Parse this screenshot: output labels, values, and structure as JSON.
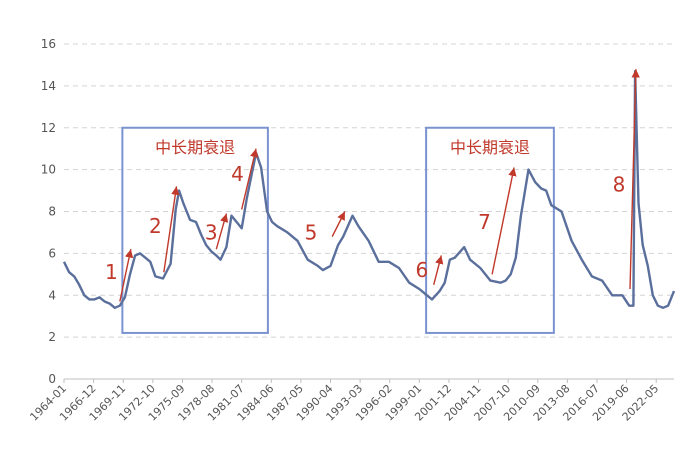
{
  "chart_data": {
    "type": "line",
    "title": "",
    "xlabel": "",
    "ylabel": "",
    "ylim": [
      0,
      16
    ],
    "yticks": [
      0,
      2,
      4,
      6,
      8,
      10,
      12,
      14,
      16
    ],
    "grid": "horizontal dashed",
    "line_color": "#5a6f9c",
    "accent_color": "#c0392b",
    "box_color": "#7a93d0",
    "x_tick_labels": [
      "1964-01",
      "1966-12",
      "1969-11",
      "1972-10",
      "1975-09",
      "1978-08",
      "1981-07",
      "1984-06",
      "1987-05",
      "1990-04",
      "1993-03",
      "1996-02",
      "1999-01",
      "2001-12",
      "2004-11",
      "2007-10",
      "2010-09",
      "2013-08",
      "2016-07",
      "2019-06",
      "2022-05"
    ],
    "x_range": [
      "1964-01",
      "2024-02"
    ],
    "series": [
      {
        "values": [
          [
            "1964-01",
            5.6
          ],
          [
            "1964-07",
            5.1
          ],
          [
            "1965-01",
            4.9
          ],
          [
            "1965-07",
            4.5
          ],
          [
            "1966-01",
            4.0
          ],
          [
            "1966-07",
            3.8
          ],
          [
            "1967-01",
            3.8
          ],
          [
            "1967-07",
            3.9
          ],
          [
            "1968-01",
            3.7
          ],
          [
            "1968-07",
            3.6
          ],
          [
            "1969-01",
            3.4
          ],
          [
            "1969-07",
            3.5
          ],
          [
            "1970-01",
            3.9
          ],
          [
            "1970-07",
            5.0
          ],
          [
            "1971-01",
            5.9
          ],
          [
            "1971-07",
            6.0
          ],
          [
            "1972-01",
            5.8
          ],
          [
            "1972-07",
            5.6
          ],
          [
            "1973-01",
            4.9
          ],
          [
            "1973-10",
            4.8
          ],
          [
            "1974-07",
            5.5
          ],
          [
            "1975-01",
            8.1
          ],
          [
            "1975-05",
            9.0
          ],
          [
            "1975-10",
            8.4
          ],
          [
            "1976-06",
            7.6
          ],
          [
            "1977-01",
            7.5
          ],
          [
            "1977-07",
            6.9
          ],
          [
            "1978-01",
            6.4
          ],
          [
            "1978-07",
            6.1
          ],
          [
            "1979-01",
            5.9
          ],
          [
            "1979-06",
            5.7
          ],
          [
            "1980-01",
            6.3
          ],
          [
            "1980-07",
            7.8
          ],
          [
            "1981-01",
            7.5
          ],
          [
            "1981-07",
            7.2
          ],
          [
            "1982-01",
            8.6
          ],
          [
            "1982-07",
            9.8
          ],
          [
            "1982-12",
            10.8
          ],
          [
            "1983-06",
            10.1
          ],
          [
            "1984-01",
            8.0
          ],
          [
            "1984-07",
            7.5
          ],
          [
            "1985-01",
            7.3
          ],
          [
            "1986-01",
            7.0
          ],
          [
            "1987-01",
            6.6
          ],
          [
            "1988-01",
            5.7
          ],
          [
            "1989-01",
            5.4
          ],
          [
            "1989-07",
            5.2
          ],
          [
            "1990-04",
            5.4
          ],
          [
            "1991-01",
            6.4
          ],
          [
            "1991-07",
            6.8
          ],
          [
            "1992-06",
            7.8
          ],
          [
            "1993-01",
            7.3
          ],
          [
            "1994-01",
            6.6
          ],
          [
            "1995-01",
            5.6
          ],
          [
            "1996-01",
            5.6
          ],
          [
            "1997-01",
            5.3
          ],
          [
            "1998-01",
            4.6
          ],
          [
            "1999-01",
            4.3
          ],
          [
            "2000-04",
            3.8
          ],
          [
            "2001-01",
            4.2
          ],
          [
            "2001-07",
            4.6
          ],
          [
            "2002-01",
            5.7
          ],
          [
            "2002-07",
            5.8
          ],
          [
            "2003-06",
            6.3
          ],
          [
            "2004-01",
            5.7
          ],
          [
            "2005-01",
            5.3
          ],
          [
            "2006-01",
            4.7
          ],
          [
            "2007-01",
            4.6
          ],
          [
            "2007-07",
            4.7
          ],
          [
            "2008-01",
            5.0
          ],
          [
            "2008-07",
            5.8
          ],
          [
            "2009-01",
            7.8
          ],
          [
            "2009-10",
            10.0
          ],
          [
            "2010-06",
            9.4
          ],
          [
            "2011-01",
            9.1
          ],
          [
            "2011-07",
            9.0
          ],
          [
            "2012-01",
            8.3
          ],
          [
            "2013-01",
            8.0
          ],
          [
            "2014-01",
            6.6
          ],
          [
            "2015-01",
            5.7
          ],
          [
            "2016-01",
            4.9
          ],
          [
            "2017-01",
            4.7
          ],
          [
            "2018-01",
            4.0
          ],
          [
            "2019-01",
            4.0
          ],
          [
            "2019-09",
            3.5
          ],
          [
            "2020-02",
            3.5
          ],
          [
            "2020-04",
            14.7
          ],
          [
            "2020-08",
            8.4
          ],
          [
            "2021-01",
            6.4
          ],
          [
            "2021-07",
            5.4
          ],
          [
            "2022-01",
            4.0
          ],
          [
            "2022-07",
            3.5
          ],
          [
            "2023-01",
            3.4
          ],
          [
            "2023-07",
            3.5
          ],
          [
            "2024-02",
            4.2
          ]
        ]
      }
    ],
    "boxes": [
      {
        "label": "中长期衰退",
        "start": "1969-10",
        "end": "1984-02",
        "ymin": 2.2,
        "ymax": 12.0
      },
      {
        "label": "中长期衰退",
        "start": "1999-09",
        "end": "2012-04",
        "ymin": 2.2,
        "ymax": 12.0
      }
    ],
    "annotations": [
      {
        "label": "1",
        "from": [
          "1969-07",
          3.7
        ],
        "to": [
          "1970-08",
          6.2
        ],
        "label_at": [
          "1968-09",
          5.1
        ]
      },
      {
        "label": "2",
        "from": [
          "1973-11",
          5.1
        ],
        "to": [
          "1975-02",
          9.2
        ],
        "label_at": [
          "1973-01",
          7.3
        ]
      },
      {
        "label": "3",
        "from": [
          "1979-01",
          6.2
        ],
        "to": [
          "1980-01",
          7.9
        ],
        "label_at": [
          "1978-07",
          7.0
        ]
      },
      {
        "label": "4",
        "from": [
          "1981-07",
          8.1
        ],
        "to": [
          "1982-12",
          11.0
        ],
        "label_at": [
          "1981-02",
          9.8
        ]
      },
      {
        "label": "5",
        "from": [
          "1990-06",
          6.8
        ],
        "to": [
          "1991-09",
          8.0
        ],
        "label_at": [
          "1988-05",
          7.0
        ]
      },
      {
        "label": "6",
        "from": [
          "2000-06",
          4.5
        ],
        "to": [
          "2001-03",
          5.9
        ],
        "label_at": [
          "1999-04",
          5.2
        ]
      },
      {
        "label": "7",
        "from": [
          "2006-03",
          5.0
        ],
        "to": [
          "2008-05",
          10.1
        ],
        "label_at": [
          "2005-06",
          7.5
        ]
      },
      {
        "label": "8",
        "from": [
          "2019-10",
          4.3
        ],
        "to": [
          "2020-05",
          14.8
        ],
        "label_at": [
          "2018-09",
          9.3
        ]
      }
    ]
  }
}
